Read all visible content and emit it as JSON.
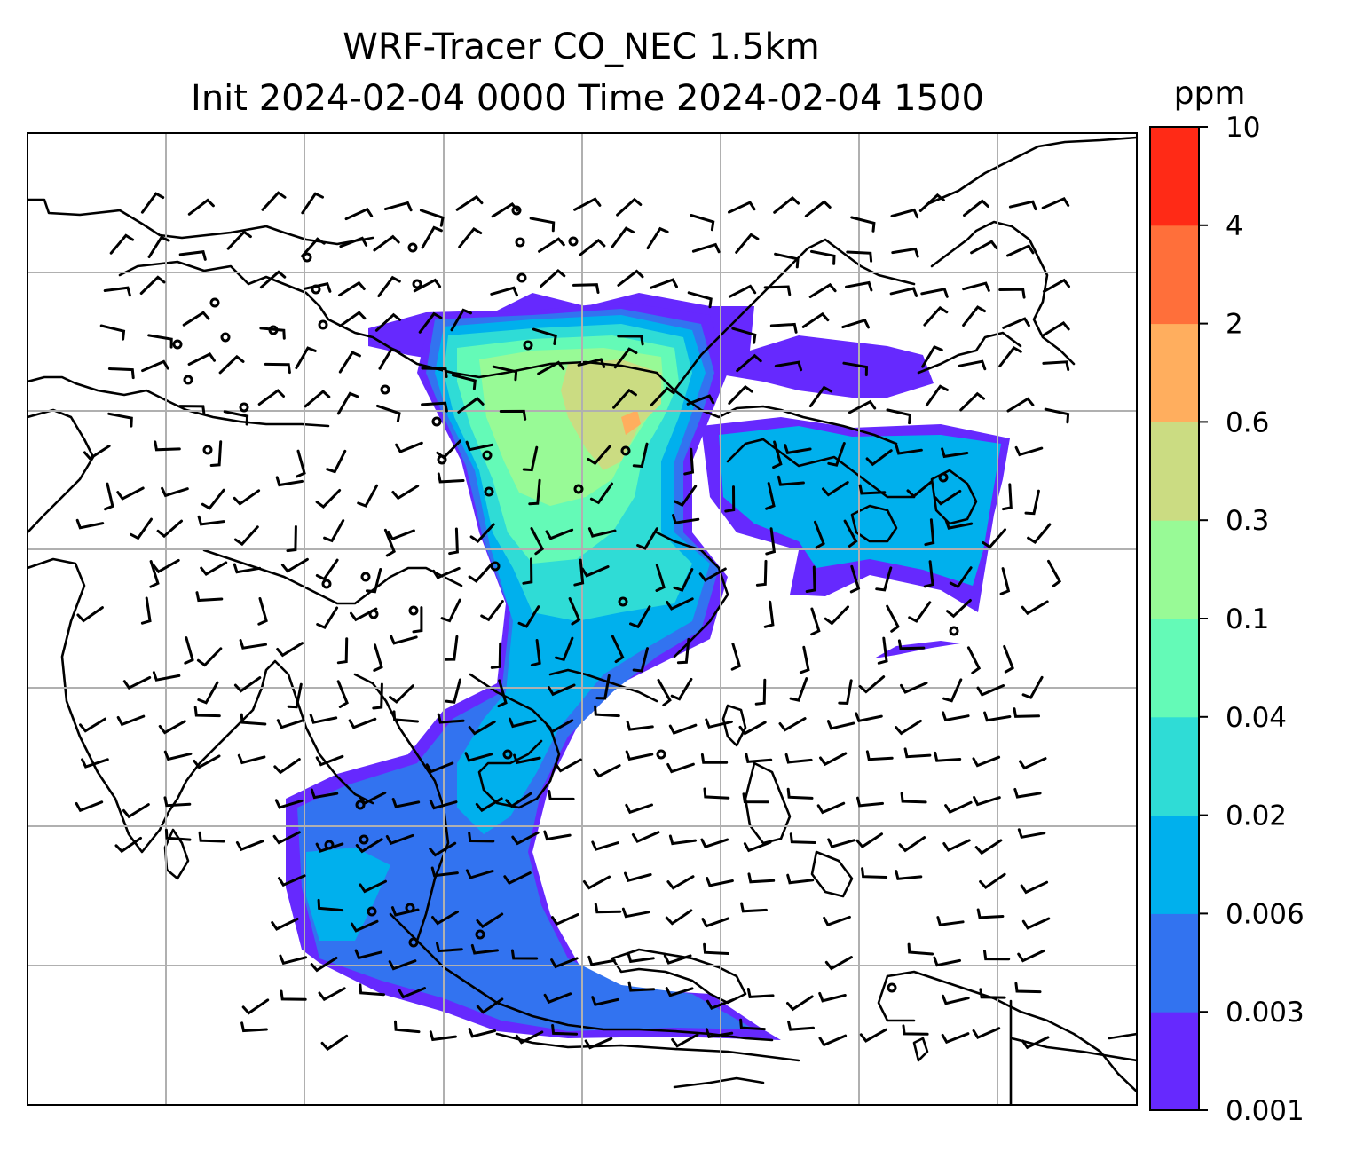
{
  "title": {
    "line1": "WRF-Tracer CO_NEC 1.5km",
    "line2": "Init 2024-02-04 0000 Time 2024-02-04 1500"
  },
  "colorbar": {
    "unit": "ppm",
    "levels": [
      "0.001",
      "0.003",
      "0.006",
      "0.02",
      "0.04",
      "0.1",
      "0.3",
      "0.6",
      "2",
      "4",
      "10"
    ],
    "colors": [
      "#6629fe",
      "#3273f0",
      "#00b0ed",
      "#2fdcd6",
      "#64fab7",
      "#98fa96",
      "#cbdc82",
      "#ffae5e",
      "#ff6f3a",
      "#ff2a16"
    ]
  },
  "map": {
    "field": "CO tracer concentration",
    "overlays": [
      "coastlines",
      "gridlines",
      "wind barbs"
    ],
    "gridlines": "on"
  }
}
